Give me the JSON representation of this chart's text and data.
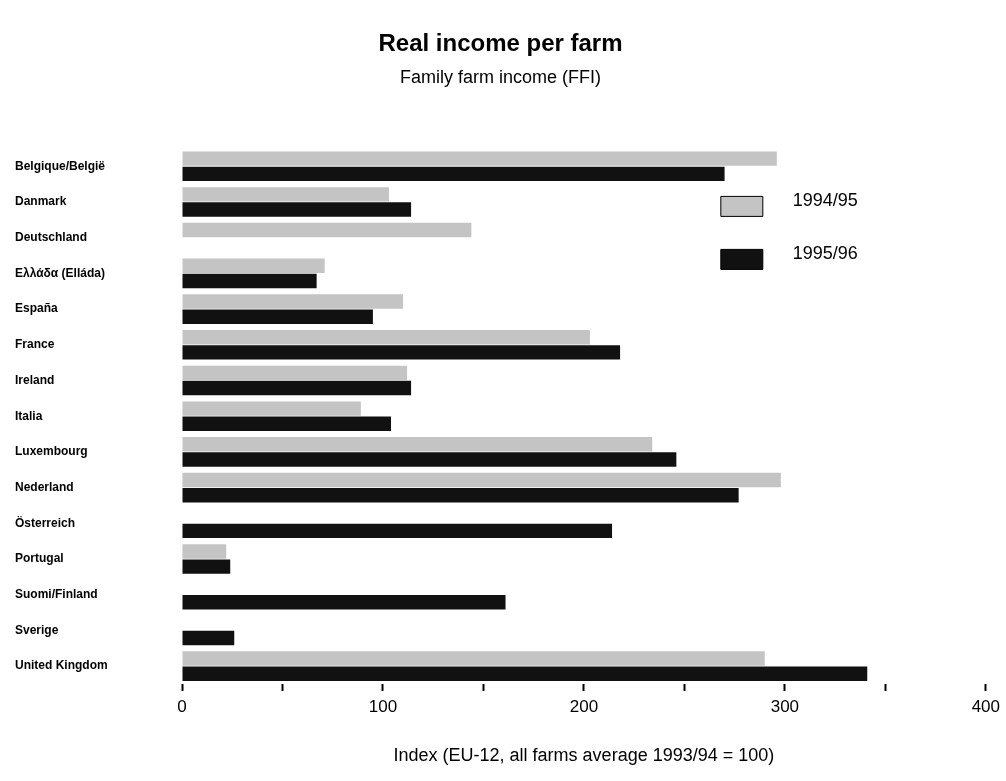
{
  "chart_data": {
    "type": "bar",
    "orientation": "horizontal",
    "title": "Real income per farm",
    "subtitle": "Family farm income (FFI)",
    "xlabel": "Index (EU-12, all farms average 1993/94 = 100)",
    "categories": [
      "Belgique/België",
      "Danmark",
      "Deutschland",
      "Ελλάδα (Elláda)",
      "España",
      "France",
      "Ireland",
      "Italia",
      "Luxembourg",
      "Nederland",
      "Österreich",
      "Portugal",
      "Suomi/Finland",
      "Sverige",
      "United Kingdom"
    ],
    "series": [
      {
        "name": "1994/95",
        "color": "#c4c4c4",
        "values": [
          296,
          103,
          144,
          71,
          110,
          203,
          112,
          89,
          234,
          298,
          null,
          22,
          null,
          null,
          290
        ]
      },
      {
        "name": "1995/96",
        "color": "#111111",
        "values": [
          270,
          114,
          null,
          67,
          95,
          218,
          114,
          104,
          246,
          277,
          214,
          24,
          161,
          26,
          341
        ]
      }
    ],
    "xlim": [
      0,
      400
    ],
    "xticks": [
      0,
      {
        "value": 50,
        "label": null
      },
      100,
      {
        "value": 150,
        "label": null
      },
      200,
      {
        "value": 250,
        "label": null
      },
      300,
      {
        "value": 350,
        "label": null
      },
      400
    ],
    "grid": false,
    "legend": "top right"
  }
}
